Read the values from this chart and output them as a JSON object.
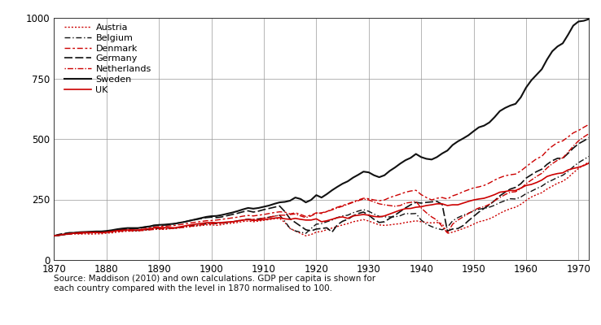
{
  "source_text": "Source: Maddison (2010) and own calculations. GDP per capita is shown for\neach country compared with the level in 1870 normalised to 100.",
  "ylim": [
    0,
    1000
  ],
  "xlim": [
    1870,
    1972
  ],
  "yticks": [
    0,
    250,
    500,
    750,
    1000
  ],
  "xticks": [
    1870,
    1880,
    1890,
    1900,
    1910,
    1920,
    1930,
    1940,
    1950,
    1960,
    1970
  ],
  "background_color": "#ffffff",
  "top_bar_color": "#aa1122",
  "bottom_bar_color": "#aa1122",
  "countries": {
    "Austria": {
      "color": "#cc0000",
      "linewidth": 1.0,
      "data": {
        "1870": 100,
        "1871": 105,
        "1872": 108,
        "1873": 110,
        "1874": 108,
        "1875": 107,
        "1876": 108,
        "1877": 107,
        "1878": 108,
        "1879": 108,
        "1880": 111,
        "1881": 112,
        "1882": 115,
        "1883": 117,
        "1884": 119,
        "1885": 119,
        "1886": 120,
        "1887": 123,
        "1888": 125,
        "1889": 127,
        "1890": 128,
        "1891": 126,
        "1892": 129,
        "1893": 130,
        "1894": 133,
        "1895": 136,
        "1896": 138,
        "1897": 140,
        "1898": 142,
        "1899": 145,
        "1900": 145,
        "1901": 143,
        "1902": 146,
        "1903": 150,
        "1904": 152,
        "1905": 155,
        "1906": 159,
        "1907": 161,
        "1908": 158,
        "1909": 161,
        "1910": 164,
        "1911": 167,
        "1912": 170,
        "1913": 172,
        "1914": 155,
        "1915": 130,
        "1916": 120,
        "1917": 110,
        "1918": 100,
        "1919": 105,
        "1920": 115,
        "1921": 118,
        "1922": 125,
        "1923": 132,
        "1924": 138,
        "1925": 145,
        "1926": 150,
        "1927": 158,
        "1928": 162,
        "1929": 167,
        "1930": 161,
        "1931": 153,
        "1932": 145,
        "1933": 143,
        "1934": 145,
        "1935": 148,
        "1936": 150,
        "1937": 155,
        "1938": 158,
        "1939": 162,
        "1940": 158,
        "1941": 155,
        "1942": 153,
        "1943": 155,
        "1944": 150,
        "1945": 110,
        "1946": 115,
        "1947": 122,
        "1948": 130,
        "1949": 138,
        "1950": 148,
        "1951": 158,
        "1952": 163,
        "1953": 170,
        "1954": 180,
        "1955": 193,
        "1956": 203,
        "1957": 212,
        "1958": 218,
        "1959": 230,
        "1960": 246,
        "1961": 260,
        "1962": 270,
        "1963": 278,
        "1964": 293,
        "1965": 305,
        "1966": 317,
        "1967": 325,
        "1968": 340,
        "1969": 360,
        "1970": 378,
        "1971": 392,
        "1972": 405
      }
    },
    "Belgium": {
      "color": "#111111",
      "linewidth": 1.0,
      "data": {
        "1870": 100,
        "1871": 103,
        "1872": 106,
        "1873": 109,
        "1874": 111,
        "1875": 112,
        "1876": 113,
        "1877": 114,
        "1878": 114,
        "1879": 113,
        "1880": 115,
        "1881": 118,
        "1882": 120,
        "1883": 122,
        "1884": 123,
        "1885": 122,
        "1886": 122,
        "1887": 124,
        "1888": 126,
        "1889": 129,
        "1890": 131,
        "1891": 131,
        "1892": 132,
        "1893": 131,
        "1894": 135,
        "1895": 138,
        "1896": 141,
        "1897": 143,
        "1898": 146,
        "1899": 149,
        "1900": 151,
        "1901": 150,
        "1902": 152,
        "1903": 155,
        "1904": 158,
        "1905": 162,
        "1906": 166,
        "1907": 169,
        "1908": 167,
        "1909": 170,
        "1910": 173,
        "1911": 177,
        "1912": 181,
        "1913": 185,
        "1914": 160,
        "1915": 130,
        "1916": 120,
        "1917": 115,
        "1918": 110,
        "1919": 130,
        "1920": 148,
        "1921": 150,
        "1922": 158,
        "1923": 165,
        "1924": 175,
        "1925": 182,
        "1926": 185,
        "1927": 195,
        "1928": 202,
        "1929": 208,
        "1930": 201,
        "1931": 190,
        "1932": 180,
        "1933": 178,
        "1934": 178,
        "1935": 178,
        "1936": 183,
        "1937": 192,
        "1938": 191,
        "1939": 192,
        "1940": 165,
        "1941": 148,
        "1942": 138,
        "1943": 130,
        "1944": 125,
        "1945": 135,
        "1946": 162,
        "1947": 175,
        "1948": 185,
        "1949": 193,
        "1950": 202,
        "1951": 210,
        "1952": 213,
        "1953": 218,
        "1954": 226,
        "1955": 237,
        "1956": 245,
        "1957": 253,
        "1958": 252,
        "1959": 260,
        "1960": 274,
        "1961": 284,
        "1962": 295,
        "1963": 305,
        "1964": 320,
        "1965": 330,
        "1966": 341,
        "1967": 350,
        "1968": 365,
        "1969": 385,
        "1970": 402,
        "1971": 415,
        "1972": 428
      }
    },
    "Denmark": {
      "color": "#cc0000",
      "linewidth": 1.0,
      "data": {
        "1870": 100,
        "1871": 102,
        "1872": 105,
        "1873": 107,
        "1874": 109,
        "1875": 111,
        "1876": 112,
        "1877": 113,
        "1878": 115,
        "1879": 116,
        "1880": 118,
        "1881": 120,
        "1882": 123,
        "1883": 125,
        "1884": 127,
        "1885": 128,
        "1886": 130,
        "1887": 132,
        "1888": 134,
        "1889": 136,
        "1890": 138,
        "1891": 139,
        "1892": 141,
        "1893": 143,
        "1894": 146,
        "1895": 149,
        "1896": 153,
        "1897": 156,
        "1898": 159,
        "1899": 162,
        "1900": 163,
        "1901": 165,
        "1902": 168,
        "1903": 171,
        "1904": 174,
        "1905": 177,
        "1906": 181,
        "1907": 184,
        "1908": 182,
        "1909": 185,
        "1910": 188,
        "1911": 192,
        "1912": 196,
        "1913": 199,
        "1914": 198,
        "1915": 190,
        "1916": 195,
        "1917": 188,
        "1918": 180,
        "1919": 185,
        "1920": 195,
        "1921": 192,
        "1922": 200,
        "1923": 210,
        "1924": 218,
        "1925": 225,
        "1926": 232,
        "1927": 240,
        "1928": 248,
        "1929": 255,
        "1930": 253,
        "1931": 248,
        "1932": 245,
        "1933": 248,
        "1934": 258,
        "1935": 265,
        "1936": 272,
        "1937": 280,
        "1938": 285,
        "1939": 288,
        "1940": 270,
        "1941": 258,
        "1942": 248,
        "1943": 255,
        "1944": 258,
        "1945": 252,
        "1946": 265,
        "1947": 272,
        "1948": 282,
        "1949": 290,
        "1950": 298,
        "1951": 302,
        "1952": 308,
        "1953": 318,
        "1954": 330,
        "1955": 340,
        "1956": 348,
        "1957": 352,
        "1958": 355,
        "1959": 368,
        "1960": 385,
        "1961": 402,
        "1962": 418,
        "1963": 428,
        "1964": 452,
        "1965": 470,
        "1966": 485,
        "1967": 492,
        "1968": 508,
        "1969": 525,
        "1970": 535,
        "1971": 548,
        "1972": 560
      }
    },
    "Germany": {
      "color": "#111111",
      "linewidth": 1.2,
      "data": {
        "1870": 100,
        "1871": 106,
        "1872": 110,
        "1873": 113,
        "1874": 112,
        "1875": 113,
        "1876": 114,
        "1877": 115,
        "1878": 116,
        "1879": 116,
        "1880": 118,
        "1881": 120,
        "1882": 123,
        "1883": 126,
        "1884": 128,
        "1885": 129,
        "1886": 131,
        "1887": 135,
        "1888": 139,
        "1889": 143,
        "1890": 145,
        "1891": 144,
        "1892": 146,
        "1893": 150,
        "1894": 154,
        "1895": 158,
        "1896": 163,
        "1897": 167,
        "1898": 171,
        "1899": 175,
        "1900": 177,
        "1901": 175,
        "1902": 178,
        "1903": 183,
        "1904": 188,
        "1905": 193,
        "1906": 199,
        "1907": 203,
        "1908": 198,
        "1909": 202,
        "1910": 208,
        "1911": 213,
        "1912": 218,
        "1913": 223,
        "1914": 200,
        "1915": 170,
        "1916": 155,
        "1917": 140,
        "1918": 125,
        "1919": 120,
        "1920": 128,
        "1921": 130,
        "1922": 133,
        "1923": 115,
        "1924": 145,
        "1925": 160,
        "1926": 168,
        "1927": 182,
        "1928": 192,
        "1929": 198,
        "1930": 185,
        "1931": 168,
        "1932": 155,
        "1933": 158,
        "1934": 172,
        "1935": 185,
        "1936": 200,
        "1937": 215,
        "1938": 228,
        "1939": 238,
        "1940": 235,
        "1941": 238,
        "1942": 240,
        "1943": 242,
        "1944": 230,
        "1945": 120,
        "1946": 128,
        "1947": 130,
        "1948": 142,
        "1949": 162,
        "1950": 180,
        "1951": 198,
        "1952": 213,
        "1953": 228,
        "1954": 245,
        "1955": 265,
        "1956": 280,
        "1957": 293,
        "1958": 300,
        "1959": 315,
        "1960": 338,
        "1961": 352,
        "1962": 365,
        "1963": 375,
        "1964": 395,
        "1965": 410,
        "1966": 420,
        "1967": 420,
        "1968": 440,
        "1969": 462,
        "1970": 480,
        "1971": 492,
        "1972": 505
      }
    },
    "Netherlands": {
      "color": "#cc0000",
      "linewidth": 1.0,
      "data": {
        "1870": 100,
        "1871": 102,
        "1872": 105,
        "1873": 107,
        "1874": 109,
        "1875": 110,
        "1876": 111,
        "1877": 112,
        "1878": 113,
        "1879": 113,
        "1880": 114,
        "1881": 116,
        "1882": 118,
        "1883": 120,
        "1884": 121,
        "1885": 121,
        "1886": 121,
        "1887": 122,
        "1888": 124,
        "1889": 126,
        "1890": 128,
        "1891": 129,
        "1892": 130,
        "1893": 131,
        "1894": 133,
        "1895": 136,
        "1896": 139,
        "1897": 142,
        "1898": 145,
        "1899": 148,
        "1900": 150,
        "1901": 150,
        "1902": 152,
        "1903": 155,
        "1904": 158,
        "1905": 161,
        "1906": 165,
        "1907": 168,
        "1908": 167,
        "1909": 170,
        "1910": 173,
        "1911": 177,
        "1912": 181,
        "1913": 185,
        "1914": 185,
        "1915": 188,
        "1916": 190,
        "1917": 182,
        "1918": 175,
        "1919": 182,
        "1920": 192,
        "1921": 195,
        "1922": 200,
        "1923": 207,
        "1924": 215,
        "1925": 222,
        "1926": 230,
        "1927": 238,
        "1928": 245,
        "1929": 252,
        "1930": 248,
        "1931": 240,
        "1932": 232,
        "1933": 228,
        "1934": 225,
        "1935": 222,
        "1936": 225,
        "1937": 235,
        "1938": 238,
        "1939": 242,
        "1940": 215,
        "1941": 195,
        "1942": 178,
        "1943": 165,
        "1944": 138,
        "1945": 112,
        "1946": 148,
        "1947": 165,
        "1948": 178,
        "1949": 192,
        "1950": 205,
        "1951": 215,
        "1952": 220,
        "1953": 230,
        "1954": 245,
        "1955": 258,
        "1956": 270,
        "1957": 280,
        "1958": 282,
        "1959": 295,
        "1960": 315,
        "1961": 330,
        "1962": 345,
        "1963": 358,
        "1964": 380,
        "1965": 398,
        "1966": 412,
        "1967": 422,
        "1968": 445,
        "1969": 470,
        "1970": 492,
        "1971": 508,
        "1972": 522
      }
    },
    "Sweden": {
      "color": "#111111",
      "linewidth": 1.5,
      "data": {
        "1870": 100,
        "1871": 103,
        "1872": 106,
        "1873": 110,
        "1874": 113,
        "1875": 115,
        "1876": 116,
        "1877": 117,
        "1878": 118,
        "1879": 118,
        "1880": 120,
        "1881": 123,
        "1882": 127,
        "1883": 130,
        "1884": 132,
        "1885": 132,
        "1886": 132,
        "1887": 135,
        "1888": 138,
        "1889": 142,
        "1890": 145,
        "1891": 146,
        "1892": 148,
        "1893": 150,
        "1894": 154,
        "1895": 158,
        "1896": 163,
        "1897": 168,
        "1898": 173,
        "1899": 178,
        "1900": 181,
        "1901": 182,
        "1902": 186,
        "1903": 191,
        "1904": 196,
        "1905": 202,
        "1906": 209,
        "1907": 215,
        "1908": 212,
        "1909": 215,
        "1910": 220,
        "1911": 225,
        "1912": 232,
        "1913": 238,
        "1914": 240,
        "1915": 245,
        "1916": 258,
        "1917": 252,
        "1918": 238,
        "1919": 248,
        "1920": 268,
        "1921": 258,
        "1922": 272,
        "1923": 288,
        "1924": 302,
        "1925": 315,
        "1926": 325,
        "1927": 340,
        "1928": 352,
        "1929": 365,
        "1930": 362,
        "1931": 350,
        "1932": 342,
        "1933": 350,
        "1934": 368,
        "1935": 382,
        "1936": 398,
        "1937": 412,
        "1938": 422,
        "1939": 438,
        "1940": 425,
        "1941": 418,
        "1942": 415,
        "1943": 425,
        "1944": 440,
        "1945": 452,
        "1946": 475,
        "1947": 490,
        "1948": 502,
        "1949": 515,
        "1950": 532,
        "1951": 548,
        "1952": 555,
        "1953": 568,
        "1954": 590,
        "1955": 615,
        "1956": 628,
        "1957": 638,
        "1958": 645,
        "1959": 672,
        "1960": 712,
        "1961": 742,
        "1962": 765,
        "1963": 788,
        "1964": 828,
        "1965": 862,
        "1966": 882,
        "1967": 895,
        "1968": 930,
        "1969": 968,
        "1970": 985,
        "1971": 988,
        "1972": 995
      }
    },
    "UK": {
      "color": "#cc0000",
      "linewidth": 1.2,
      "data": {
        "1870": 100,
        "1871": 103,
        "1872": 106,
        "1873": 109,
        "1874": 111,
        "1875": 113,
        "1876": 114,
        "1877": 114,
        "1878": 114,
        "1879": 113,
        "1880": 115,
        "1881": 118,
        "1882": 121,
        "1883": 123,
        "1884": 124,
        "1885": 124,
        "1886": 124,
        "1887": 126,
        "1888": 129,
        "1889": 132,
        "1890": 134,
        "1891": 134,
        "1892": 134,
        "1893": 133,
        "1894": 137,
        "1895": 141,
        "1896": 145,
        "1897": 148,
        "1898": 151,
        "1899": 154,
        "1900": 155,
        "1901": 154,
        "1902": 155,
        "1903": 157,
        "1904": 158,
        "1905": 161,
        "1906": 165,
        "1907": 167,
        "1908": 163,
        "1909": 165,
        "1910": 167,
        "1911": 170,
        "1912": 173,
        "1913": 175,
        "1914": 170,
        "1915": 168,
        "1916": 172,
        "1917": 168,
        "1918": 165,
        "1919": 165,
        "1920": 170,
        "1921": 158,
        "1922": 162,
        "1923": 168,
        "1924": 175,
        "1925": 178,
        "1926": 172,
        "1927": 182,
        "1928": 185,
        "1929": 188,
        "1930": 185,
        "1931": 180,
        "1932": 178,
        "1933": 182,
        "1934": 190,
        "1935": 198,
        "1936": 206,
        "1937": 212,
        "1938": 213,
        "1939": 218,
        "1940": 220,
        "1941": 225,
        "1942": 228,
        "1943": 232,
        "1944": 232,
        "1945": 225,
        "1946": 228,
        "1947": 228,
        "1948": 235,
        "1949": 242,
        "1950": 248,
        "1951": 252,
        "1952": 255,
        "1953": 262,
        "1954": 270,
        "1955": 280,
        "1956": 283,
        "1957": 287,
        "1958": 287,
        "1959": 297,
        "1960": 308,
        "1961": 312,
        "1962": 320,
        "1963": 330,
        "1964": 345,
        "1965": 352,
        "1966": 357,
        "1967": 360,
        "1968": 372,
        "1969": 378,
        "1970": 383,
        "1971": 390,
        "1972": 400
      }
    }
  }
}
